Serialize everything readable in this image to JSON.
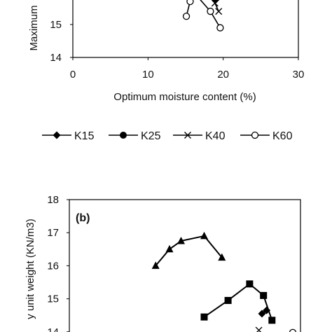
{
  "chart_data": [
    {
      "type": "scatter",
      "panel_label": "",
      "xlabel": "Optimum moisture content (%)",
      "ylabel": "Maximum",
      "xlim": [
        0,
        30
      ],
      "ylim_visible": [
        14,
        15.95
      ],
      "x_ticks": [
        "0",
        "10",
        "20",
        "30"
      ],
      "y_ticks": [
        "14",
        "15"
      ],
      "grid": false,
      "legend_position": "below",
      "series": [
        {
          "name": "K15",
          "marker": "diamond-filled",
          "x": [
            18.3,
            19.0
          ],
          "y": [
            15.9,
            15.75
          ]
        },
        {
          "name": "K25",
          "marker": "circle-filled",
          "x": [],
          "y": []
        },
        {
          "name": "K40",
          "marker": "x",
          "x": [
            18.3,
            18.9,
            19.4
          ],
          "y": [
            15.95,
            15.65,
            15.4
          ]
        },
        {
          "name": "K60",
          "marker": "circle-open",
          "x": [
            15.1,
            15.6,
            16.2,
            18.3,
            19.6
          ],
          "y": [
            15.25,
            15.7,
            15.95,
            15.4,
            14.9
          ]
        }
      ],
      "extra_marks": [
        {
          "kind": "line",
          "x": [
            14.7,
            15.0
          ],
          "y": [
            15.8,
            15.95
          ]
        }
      ]
    },
    {
      "type": "line",
      "panel_label": "(b)",
      "xlabel": "",
      "ylabel": "y unit weight (KN/m3)",
      "ylim_visible": [
        13.95,
        18
      ],
      "xlim_assumed": [
        0,
        30
      ],
      "y_ticks": [
        "14",
        "15",
        "16",
        "17",
        "18"
      ],
      "grid": false,
      "series": [
        {
          "marker": "triangle-filled",
          "x": [
            11.2,
            13.0,
            14.5,
            17.5,
            19.8
          ],
          "y": [
            16.0,
            16.5,
            16.75,
            16.9,
            16.25
          ]
        },
        {
          "marker": "square-filled",
          "x": [
            17.5,
            20.6,
            23.4,
            25.2,
            26.3
          ],
          "y": [
            14.45,
            14.95,
            15.45,
            15.1,
            14.35
          ]
        },
        {
          "marker": "diamond-filled",
          "x": [
            25.0,
            25.6
          ],
          "y": [
            14.55,
            14.65
          ]
        },
        {
          "marker": "x",
          "x": [
            24.6
          ],
          "y": [
            14.05
          ]
        },
        {
          "marker": "circle-open",
          "x": [
            29.0
          ],
          "y": [
            13.98
          ]
        }
      ]
    }
  ]
}
